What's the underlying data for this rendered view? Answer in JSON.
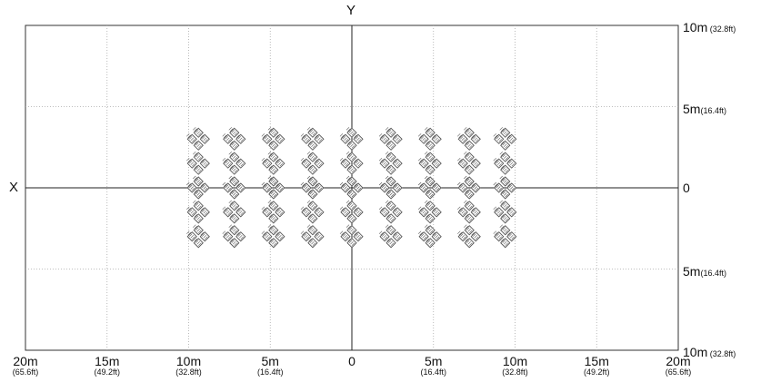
{
  "axis_labels": {
    "x": "X",
    "y": "Y"
  },
  "x_ticks": [
    {
      "main": "20m",
      "sub": "(65.6ft)"
    },
    {
      "main": "15m",
      "sub": "(49.2ft)"
    },
    {
      "main": "10m",
      "sub": "(32.8ft)"
    },
    {
      "main": "5m",
      "sub": "(16.4ft)"
    },
    {
      "main": "0",
      "sub": ""
    },
    {
      "main": "5m",
      "sub": "(16.4ft)"
    },
    {
      "main": "10m",
      "sub": "(32.8ft)"
    },
    {
      "main": "15m",
      "sub": "(49.2ft)"
    },
    {
      "main": "20m",
      "sub": "(65.6ft)"
    }
  ],
  "y_ticks": [
    {
      "main": "10m",
      "sub": " (32.8ft)"
    },
    {
      "main": "5m",
      "sub": "(16.4ft)"
    },
    {
      "main": "0",
      "sub": ""
    },
    {
      "main": "5m",
      "sub": "(16.4ft)"
    },
    {
      "main": "10m",
      "sub": " (32.8ft)"
    }
  ],
  "chart_data": {
    "type": "scatter",
    "xlim": [
      -20,
      20
    ],
    "ylim": [
      -10,
      10
    ],
    "x_unit": "m",
    "y_unit": "m",
    "grid": true,
    "grid_style": "dotted",
    "element_shape": "hatched-diamond",
    "cluster_pattern": "rotated square of 4 diamonds",
    "fixture_groups": {
      "columns_x_m": [
        -9.4,
        -7.2,
        -4.8,
        -2.4,
        0,
        2.4,
        4.8,
        7.2,
        9.4
      ],
      "rows_y_m": [
        3.0,
        1.5,
        0,
        -1.5,
        -3.0
      ]
    },
    "colors": {
      "element": "#555555",
      "axes": "#000000",
      "grid": "#aaaaaa"
    }
  }
}
